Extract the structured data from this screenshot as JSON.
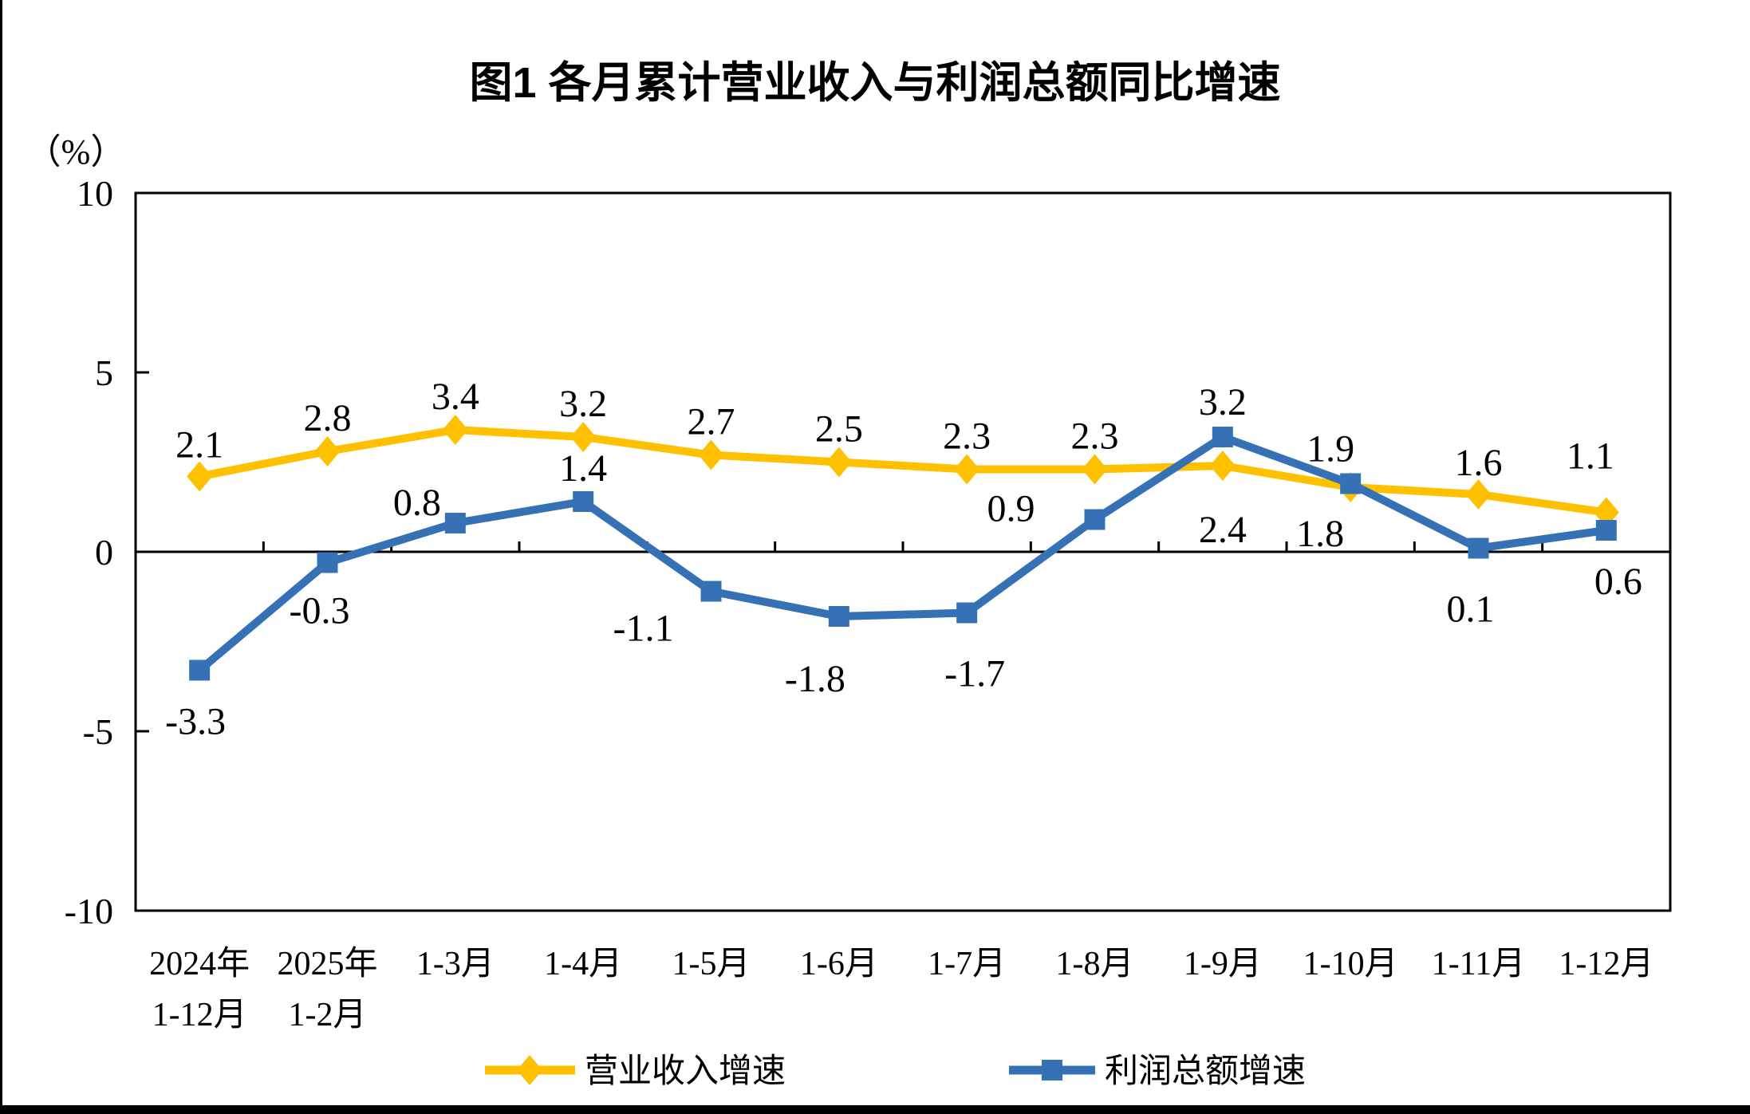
{
  "title": "图1  各月累计营业收入与利润总额同比增速",
  "unit_label": "（%）",
  "chart_data": {
    "type": "line",
    "title": "图1  各月累计营业收入与利润总额同比增速",
    "ylabel": "（%）",
    "xlabel": "",
    "ylim": [
      -10,
      10
    ],
    "y_ticks": [
      10,
      5,
      0,
      -5,
      -10
    ],
    "grid": false,
    "legend_position": "bottom",
    "categories": [
      [
        "2024年",
        "1-12月"
      ],
      [
        "2025年",
        "1-2月"
      ],
      [
        "1-3月"
      ],
      [
        "1-4月"
      ],
      [
        "1-5月"
      ],
      [
        "1-6月"
      ],
      [
        "1-7月"
      ],
      [
        "1-8月"
      ],
      [
        "1-9月"
      ],
      [
        "1-10月"
      ],
      [
        "1-11月"
      ],
      [
        "1-12月"
      ]
    ],
    "series": [
      {
        "name": "营业收入增速",
        "color": "#FFC000",
        "marker": "diamond",
        "values": [
          2.1,
          2.8,
          3.4,
          3.2,
          2.7,
          2.5,
          2.3,
          2.3,
          2.4,
          1.8,
          1.6,
          1.1
        ],
        "labels": [
          "2.1",
          "2.8",
          "3.4",
          "3.2",
          "2.7",
          "2.5",
          "2.3",
          "2.3",
          "2.4",
          "1.8",
          "1.6",
          "1.1"
        ],
        "label_offsets": [
          [
            0,
            -24
          ],
          [
            0,
            -26
          ],
          [
            0,
            -26
          ],
          [
            0,
            -26
          ],
          [
            0,
            -26
          ],
          [
            0,
            -26
          ],
          [
            0,
            -26
          ],
          [
            0,
            -26
          ],
          [
            0,
            96
          ],
          [
            -38,
            74
          ],
          [
            0,
            -24
          ],
          [
            -20,
            -55
          ]
        ]
      },
      {
        "name": "利润总额增速",
        "color": "#3670B5",
        "marker": "square",
        "values": [
          -3.3,
          -0.3,
          0.8,
          1.4,
          -1.1,
          -1.8,
          -1.7,
          0.9,
          3.2,
          1.9,
          0.1,
          0.6
        ],
        "labels": [
          "-3.3",
          "-0.3",
          "0.8",
          "1.4",
          "-1.1",
          "-1.8",
          "-1.7",
          "0.9",
          "3.2",
          "1.9",
          "0.1",
          "0.6"
        ],
        "label_offsets": [
          [
            -5,
            80
          ],
          [
            -10,
            76
          ],
          [
            -48,
            -10
          ],
          [
            0,
            -26
          ],
          [
            -85,
            62
          ],
          [
            -30,
            94
          ],
          [
            10,
            92
          ],
          [
            -105,
            2
          ],
          [
            0,
            -28
          ],
          [
            -25,
            -28
          ],
          [
            -10,
            92
          ],
          [
            15,
            80
          ]
        ]
      }
    ]
  },
  "legend": {
    "items": [
      {
        "label": "营业收入增速"
      },
      {
        "label": "利润总额增速"
      }
    ]
  },
  "frame_color": "#000000"
}
